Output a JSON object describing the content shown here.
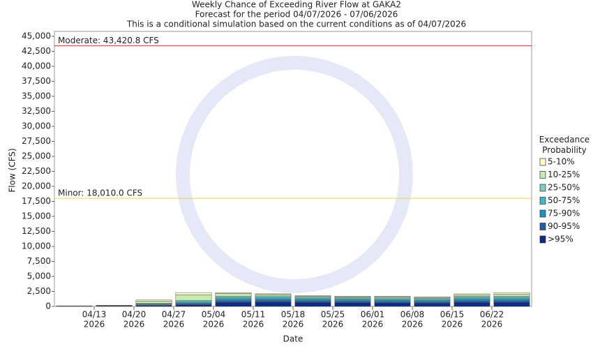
{
  "chart_data": {
    "type": "stacked-bar",
    "title": "Weekly Chance of Exceeding River Flow at GAKA2",
    "subtitle": "Forecast for the period 04/07/2026 - 07/06/2026",
    "note": "This is a conditional simulation based on the current conditions as of 04/07/2026",
    "ylabel": "Flow (CFS)",
    "xlabel": "Date",
    "legend_title": "Exceedance Probability",
    "xlim": [
      -0.5,
      11.5
    ],
    "xticks": [
      {
        "value": 0.5,
        "label": "04/13",
        "sublabel": "2026"
      },
      {
        "value": 1.5,
        "label": "04/20",
        "sublabel": "2026"
      },
      {
        "value": 2.5,
        "label": "04/27",
        "sublabel": "2026"
      },
      {
        "value": 3.5,
        "label": "05/04",
        "sublabel": "2026"
      },
      {
        "value": 4.5,
        "label": "05/11",
        "sublabel": "2026"
      },
      {
        "value": 5.5,
        "label": "05/18",
        "sublabel": "2026"
      },
      {
        "value": 6.5,
        "label": "05/25",
        "sublabel": "2026"
      },
      {
        "value": 7.5,
        "label": "06/01",
        "sublabel": "2026"
      },
      {
        "value": 8.5,
        "label": "06/08",
        "sublabel": "2026"
      },
      {
        "value": 9.5,
        "label": "06/15",
        "sublabel": "2026"
      },
      {
        "value": 10.5,
        "label": "06/22",
        "sublabel": "2026"
      }
    ],
    "x": [
      0,
      1,
      2,
      3,
      4,
      5,
      6,
      7,
      8,
      9,
      10,
      11
    ],
    "ylim": [
      0,
      45000
    ],
    "yticks": [
      0,
      {
        "value": 2500,
        "label": "2,500"
      },
      {
        "value": 5000,
        "label": "5,000"
      },
      {
        "value": 7500,
        "label": "7,500"
      },
      {
        "value": 10000,
        "label": "10,000"
      },
      {
        "value": 12500,
        "label": "12,500"
      },
      {
        "value": 15000,
        "label": "15,000"
      },
      {
        "value": 17500,
        "label": "17,500"
      },
      {
        "value": 20000,
        "label": "20,000"
      },
      {
        "value": 22500,
        "label": "22,500"
      },
      {
        "value": 25000,
        "label": "25,000"
      },
      {
        "value": 27500,
        "label": "27,500"
      },
      {
        "value": 30000,
        "label": "30,000"
      },
      {
        "value": 32500,
        "label": "32,500"
      },
      {
        "value": 35000,
        "label": "35,000"
      },
      {
        "value": 37500,
        "label": "37,500"
      },
      {
        "value": 40000,
        "label": "40,000"
      },
      {
        "value": 42500,
        "label": "42,500"
      },
      {
        "value": 45000,
        "label": "45,000"
      }
    ],
    "thresholds": [
      {
        "label": "Moderate: 43,420.8 CFS",
        "value": 43420.8,
        "color": "#d62728"
      },
      {
        "label": "Minor: 18,010.0 CFS",
        "value": 18010.0,
        "color": "#e6d84a"
      }
    ],
    "series": [
      {
        "name": ">95%",
        "color": "#0c2c84",
        "values": [
          40,
          60,
          150,
          300,
          700,
          750,
          700,
          650,
          600,
          550,
          700,
          700
        ]
      },
      {
        "name": "90-95%",
        "color": "#225ea8",
        "values": [
          10,
          20,
          60,
          120,
          250,
          250,
          220,
          200,
          200,
          200,
          250,
          250
        ]
      },
      {
        "name": "75-90%",
        "color": "#1d91c0",
        "values": [
          10,
          20,
          80,
          150,
          250,
          250,
          230,
          220,
          220,
          200,
          250,
          250
        ]
      },
      {
        "name": "50-75%",
        "color": "#41b6c4",
        "values": [
          10,
          20,
          100,
          200,
          250,
          250,
          220,
          200,
          200,
          200,
          250,
          250
        ]
      },
      {
        "name": "25-50%",
        "color": "#7fcdbb",
        "values": [
          10,
          20,
          150,
          250,
          250,
          250,
          200,
          200,
          200,
          180,
          250,
          250
        ]
      },
      {
        "name": "10-25%",
        "color": "#c7e9b4",
        "values": [
          10,
          30,
          350,
          900,
          450,
          250,
          150,
          150,
          200,
          170,
          250,
          350
        ]
      },
      {
        "name": "5-10%",
        "color": "#ffffcc",
        "values": [
          10,
          30,
          210,
          380,
          150,
          100,
          80,
          80,
          80,
          100,
          150,
          250
        ]
      }
    ]
  }
}
